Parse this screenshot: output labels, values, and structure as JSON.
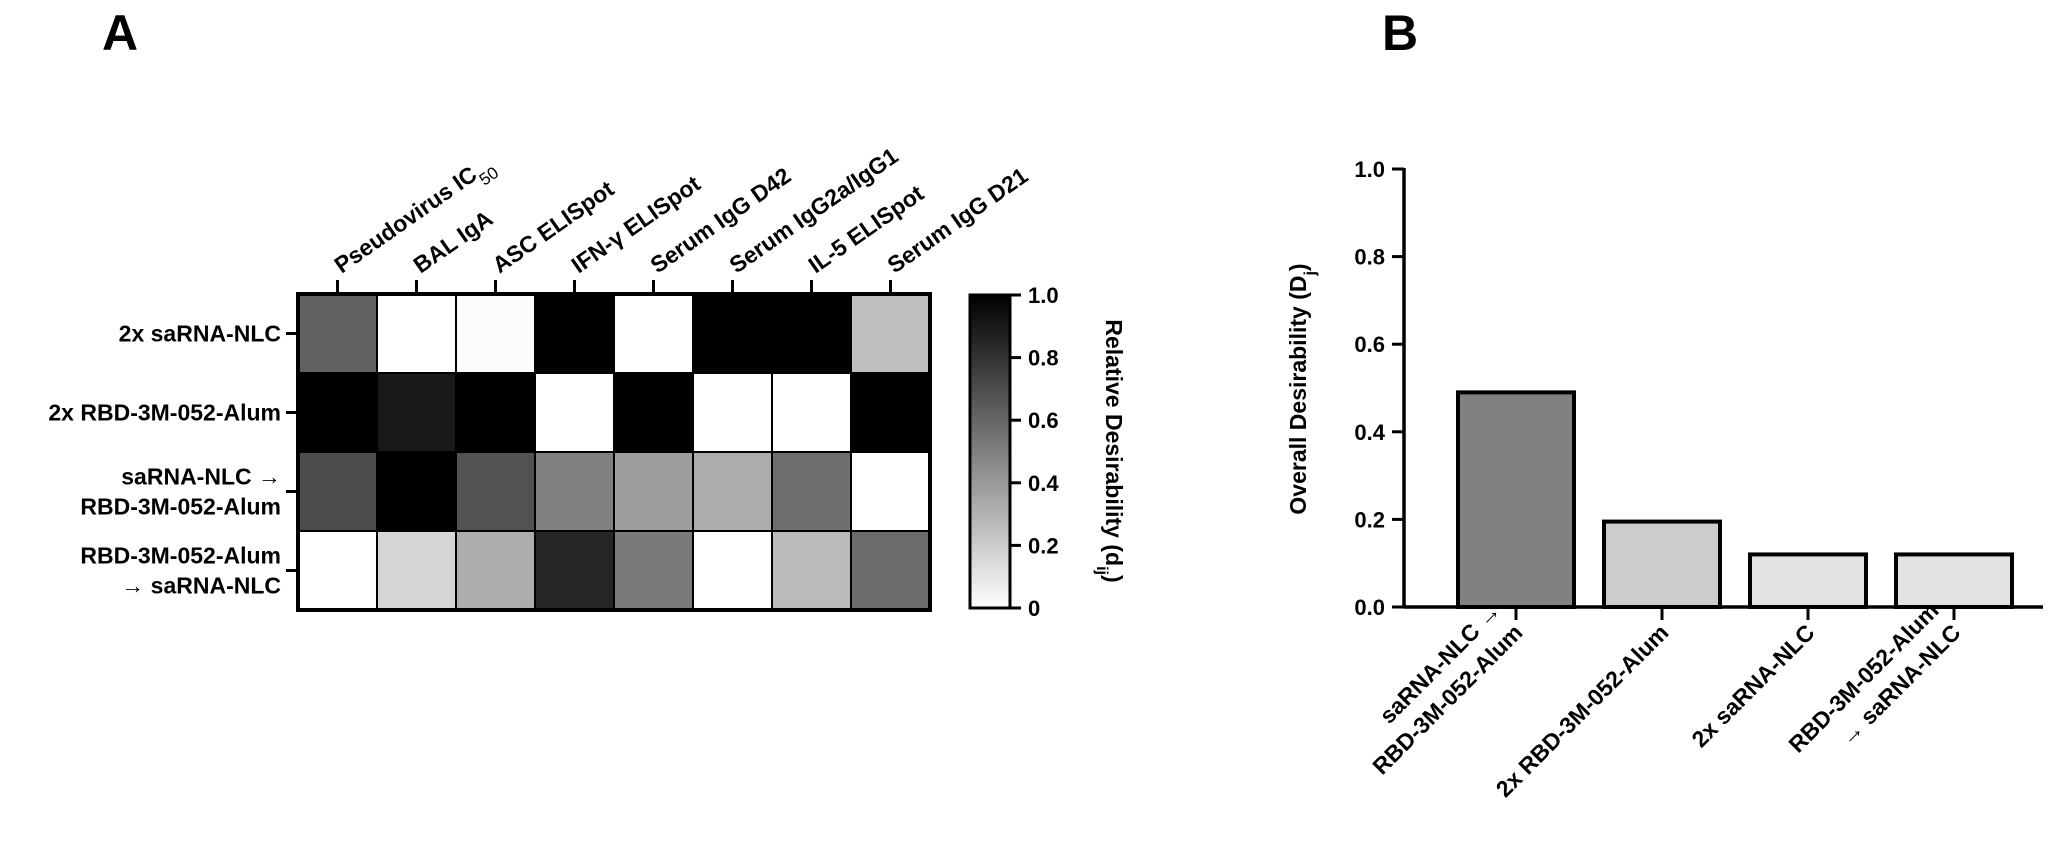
{
  "panels": {
    "a_letter": "A",
    "b_letter": "B"
  },
  "chart_data": [
    {
      "type": "heatmap",
      "title": "",
      "columns": [
        "Pseudovirus IC50",
        "BAL IgA",
        "ASC ELISpot",
        "IFN-γ ELISpot",
        "Serum IgG D42",
        "Serum IgG2a/IgG1",
        "IL-5 ELISpot",
        "Serum IgG D21"
      ],
      "column_labels": [
        {
          "text": "Pseudovirus IC",
          "sub": "50"
        },
        {
          "text": "BAL IgA",
          "sub": ""
        },
        {
          "text": "ASC ELISpot",
          "sub": ""
        },
        {
          "text": "IFN-γ ELISpot",
          "sub": ""
        },
        {
          "text": "Serum IgG D42",
          "sub": ""
        },
        {
          "text": "Serum IgG2a/IgG1",
          "sub": ""
        },
        {
          "text": "IL-5 ELISpot",
          "sub": ""
        },
        {
          "text": "Serum IgG D21",
          "sub": ""
        }
      ],
      "rows": [
        {
          "lines": [
            "2x saRNA-NLC"
          ]
        },
        {
          "lines": [
            "2x RBD-3M-052-Alum"
          ]
        },
        {
          "lines": [
            "saRNA-NLC →",
            "RBD-3M-052-Alum"
          ]
        },
        {
          "lines": [
            "RBD-3M-052-Alum",
            "→ saRNA-NLC"
          ]
        }
      ],
      "values": [
        [
          0.62,
          0.0,
          0.01,
          1.0,
          0.0,
          1.0,
          1.0,
          0.25
        ],
        [
          1.0,
          0.9,
          1.0,
          0.0,
          1.0,
          0.0,
          0.0,
          1.0
        ],
        [
          0.7,
          1.0,
          0.68,
          0.5,
          0.38,
          0.32,
          0.57,
          0.0
        ],
        [
          0.0,
          0.16,
          0.32,
          0.85,
          0.52,
          0.0,
          0.27,
          0.58
        ]
      ],
      "colorbar": {
        "label": "Relative Desirability (d",
        "label_sub": "ij",
        "label_end": ")",
        "range": [
          0,
          1
        ],
        "ticks": [
          "0",
          "0.2",
          "0.4",
          "0.6",
          "0.8",
          "1.0"
        ],
        "tick_values": [
          0,
          0.2,
          0.4,
          0.6,
          0.8,
          1.0
        ],
        "low_color": "#ffffff",
        "high_color": "#000000"
      }
    },
    {
      "type": "bar",
      "title": "",
      "categories": [
        {
          "lines": [
            "saRNA-NLC →",
            "RBD-3M-052-Alum"
          ]
        },
        {
          "lines": [
            "2x RBD-3M-052-Alum"
          ]
        },
        {
          "lines": [
            "2x saRNA-NLC"
          ]
        },
        {
          "lines": [
            "RBD-3M-052-Alum",
            "→ saRNA-NLC"
          ]
        }
      ],
      "values": [
        0.49,
        0.195,
        0.12,
        0.12
      ],
      "colors": [
        "#818181",
        "#cccccc",
        "#e2e2e2",
        "#e2e2e2"
      ],
      "ylabel": "Overall  Desirability (D",
      "ylabel_sub": "j",
      "ylabel_end": ")",
      "xlabel": "",
      "ylim": [
        0,
        1.0
      ],
      "yticks": [
        "0.0",
        "0.2",
        "0.4",
        "0.6",
        "0.8",
        "1.0"
      ],
      "ytick_values": [
        0,
        0.2,
        0.4,
        0.6,
        0.8,
        1.0
      ]
    }
  ]
}
